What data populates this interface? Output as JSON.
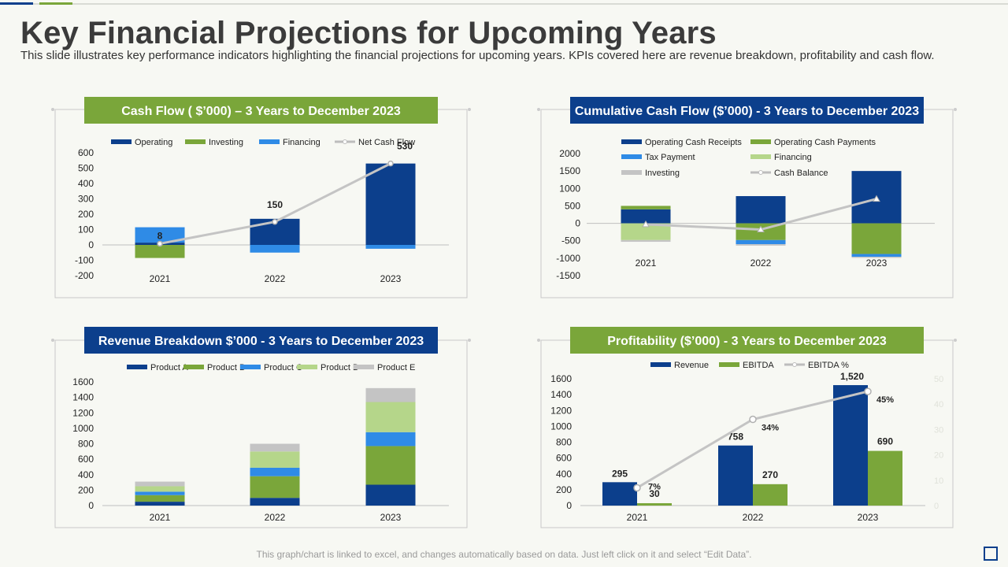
{
  "page": {
    "title": "Key Financial Projections for Upcoming Years",
    "subtitle": "This slide illustrates key performance indicators highlighting the financial projections for upcoming years. KPIs covered here are revenue breakdown, profitability and cash flow.",
    "footer": "This graph/chart is linked to excel, and changes automatically based on data. Just left click on it and select “Edit Data”.",
    "colors": {
      "blue": "#0c3f8c",
      "green": "#7aa63a",
      "light_blue": "#2f8be6",
      "light_green": "#b5d68a",
      "gray": "#c4c4c4"
    }
  },
  "chart_data": [
    {
      "id": "cash_flow",
      "type": "bar",
      "title": "Cash Flow ( $’000) – 3 Years to December 2023",
      "categories": [
        "2021",
        "2022",
        "2023"
      ],
      "series": [
        {
          "name": "Operating",
          "values": [
            15,
            170,
            530
          ]
        },
        {
          "name": "Investing",
          "values": [
            -85,
            0,
            0
          ]
        },
        {
          "name": "Financing",
          "values": [
            100,
            -50,
            -25
          ]
        },
        {
          "name": "Net Cash Flow",
          "values": [
            8,
            150,
            530
          ]
        }
      ],
      "data_labels": [
        "8",
        "150",
        "530"
      ],
      "yticks": [
        "600",
        "500",
        "400",
        "300",
        "200",
        "100",
        "0",
        "-100",
        "-200"
      ],
      "ylim": [
        -200,
        600
      ]
    },
    {
      "id": "cumulative_cash_flow",
      "type": "bar",
      "title": "Cumulative Cash Flow ($’000) - 3 Years to December 2023",
      "categories": [
        "2021",
        "2022",
        "2023"
      ],
      "series": [
        {
          "name": "Operating Cash Receipts",
          "values": [
            400,
            780,
            1500
          ]
        },
        {
          "name": "Operating Cash Payments",
          "values": [
            100,
            -480,
            -880
          ]
        },
        {
          "name": "Tax Payment",
          "values": [
            0,
            -120,
            -80
          ]
        },
        {
          "name": "Financing",
          "values": [
            -480,
            0,
            0
          ]
        },
        {
          "name": "Investing",
          "values": [
            -50,
            -40,
            -30
          ]
        },
        {
          "name": "Cash Balance",
          "values": [
            -30,
            -180,
            700
          ]
        }
      ],
      "yticks": [
        "2000",
        "1500",
        "1000",
        "500",
        "0",
        "-500",
        "-1000",
        "-1500"
      ],
      "ylim": [
        -1500,
        2000
      ]
    },
    {
      "id": "revenue_breakdown",
      "type": "bar",
      "title": "Revenue Breakdown $’000 - 3 Years to December 2023",
      "categories": [
        "2021",
        "2022",
        "2023"
      ],
      "series": [
        {
          "name": "Product A",
          "values": [
            50,
            100,
            270
          ]
        },
        {
          "name": "Product B",
          "values": [
            85,
            280,
            500
          ]
        },
        {
          "name": "Product C",
          "values": [
            45,
            110,
            180
          ]
        },
        {
          "name": "Product D",
          "values": [
            70,
            210,
            390
          ]
        },
        {
          "name": "Product E",
          "values": [
            60,
            100,
            180
          ]
        }
      ],
      "yticks": [
        "1600",
        "1400",
        "1200",
        "1000",
        "800",
        "600",
        "400",
        "200",
        "0"
      ],
      "ylim": [
        0,
        1600
      ]
    },
    {
      "id": "profitability",
      "type": "bar",
      "title": "Profitability  ($’000) - 3 Years to December 2023",
      "categories": [
        "2021",
        "2022",
        "2023"
      ],
      "series": [
        {
          "name": "Revenue",
          "values": [
            295,
            758,
            1520
          ]
        },
        {
          "name": "EBITDA",
          "values": [
            30,
            270,
            690
          ]
        },
        {
          "name": "EBITDA %",
          "values": [
            7,
            34,
            45
          ]
        }
      ],
      "revenue_labels": [
        "295",
        "758",
        "1,520"
      ],
      "ebitda_labels": [
        "30",
        "270",
        "690"
      ],
      "pct_labels": [
        "7%",
        "34%",
        "45%"
      ],
      "yticks": [
        "1600",
        "1400",
        "1200",
        "1000",
        "800",
        "600",
        "400",
        "200",
        "0"
      ],
      "y2ticks": [
        "50",
        "40",
        "30",
        "20",
        "10",
        "0"
      ],
      "ylim": [
        0,
        1600
      ],
      "y2lim": [
        0,
        50
      ]
    }
  ]
}
